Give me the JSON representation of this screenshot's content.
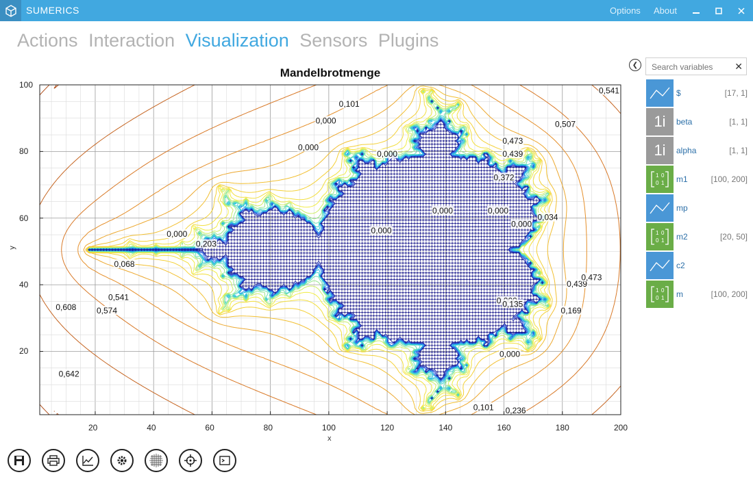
{
  "app": {
    "title": "SUMERICS",
    "options": "Options",
    "about": "About"
  },
  "tabs": [
    {
      "label": "Actions"
    },
    {
      "label": "Interaction"
    },
    {
      "label": "Visualization"
    },
    {
      "label": "Sensors"
    },
    {
      "label": "Plugins"
    }
  ],
  "search": {
    "placeholder": "Search variables",
    "value": ""
  },
  "variables": [
    {
      "name": "$",
      "size": "[17, 1]",
      "type": "plot",
      "color": "#4a97d6"
    },
    {
      "name": "beta",
      "size": "[1, 1]",
      "type": "scalar",
      "color": "#9a9a9a"
    },
    {
      "name": "alpha",
      "size": "[1, 1]",
      "type": "scalar",
      "color": "#9a9a9a"
    },
    {
      "name": "m1",
      "size": "[100, 200]",
      "type": "matrix",
      "color": "#6aad47"
    },
    {
      "name": "mp",
      "size": "",
      "type": "plot",
      "color": "#4a97d6"
    },
    {
      "name": "m2",
      "size": "[20, 50]",
      "type": "matrix",
      "color": "#6aad47"
    },
    {
      "name": "c2",
      "size": "",
      "type": "plot",
      "color": "#4a97d6"
    },
    {
      "name": "m",
      "size": "[100, 200]",
      "type": "matrix",
      "color": "#6aad47"
    }
  ],
  "icons": {
    "scalar_glyph": "1i",
    "matrix_glyph": "[1 0; 0 1]"
  },
  "toolbar": [
    "save-icon",
    "print-icon",
    "plot-icon",
    "settings-icon",
    "grid-icon",
    "crosshair-icon",
    "console-icon"
  ],
  "chart_data": {
    "type": "contour",
    "title": "Mandelbrotmenge",
    "xlabel": "x",
    "ylabel": "y",
    "xlim": [
      1,
      200
    ],
    "ylim": [
      1,
      100
    ],
    "xticks": [
      20,
      40,
      60,
      80,
      100,
      120,
      140,
      160,
      180,
      200
    ],
    "yticks": [
      20,
      40,
      60,
      80,
      100
    ],
    "grid": true,
    "contour_labels": [
      {
        "text": "0,541",
        "x": 196,
        "y": 98
      },
      {
        "text": "0,507",
        "x": 181,
        "y": 88
      },
      {
        "text": "0,473",
        "x": 163,
        "y": 83
      },
      {
        "text": "0,439",
        "x": 163,
        "y": 79
      },
      {
        "text": "0,000",
        "x": 99,
        "y": 89
      },
      {
        "text": "0,101",
        "x": 107,
        "y": 94
      },
      {
        "text": "0,000",
        "x": 93,
        "y": 81
      },
      {
        "text": "0,000",
        "x": 120,
        "y": 79
      },
      {
        "text": "0,000",
        "x": 139,
        "y": 62
      },
      {
        "text": "0,000",
        "x": 158,
        "y": 62
      },
      {
        "text": "0,000",
        "x": 118,
        "y": 56
      },
      {
        "text": "0,000",
        "x": 166,
        "y": 58
      },
      {
        "text": "0,000",
        "x": 48,
        "y": 55
      },
      {
        "text": "0,000",
        "x": 161,
        "y": 35
      },
      {
        "text": "0,000",
        "x": 162,
        "y": 19
      },
      {
        "text": "0,541",
        "x": 28,
        "y": 36
      },
      {
        "text": "0,574",
        "x": 24,
        "y": 32
      },
      {
        "text": "0,608",
        "x": 10,
        "y": 33
      },
      {
        "text": "0,642",
        "x": 11,
        "y": 13
      },
      {
        "text": "0,236",
        "x": 164,
        "y": 2
      },
      {
        "text": "0,101",
        "x": 153,
        "y": 3
      },
      {
        "text": "0,169",
        "x": 183,
        "y": 32
      },
      {
        "text": "0,439",
        "x": 185,
        "y": 40
      },
      {
        "text": "0,473",
        "x": 190,
        "y": 42
      },
      {
        "text": "0,372",
        "x": 160,
        "y": 72
      },
      {
        "text": "0,034",
        "x": 175,
        "y": 60
      },
      {
        "text": "0,203",
        "x": 58,
        "y": 52
      },
      {
        "text": "0,068",
        "x": 30,
        "y": 46
      },
      {
        "text": "0,135",
        "x": 163,
        "y": 34
      }
    ]
  }
}
